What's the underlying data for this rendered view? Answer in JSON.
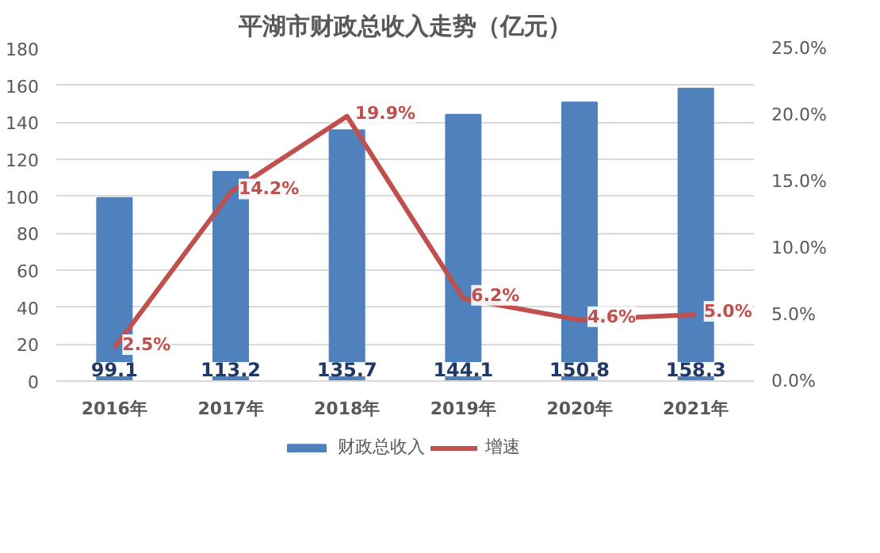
{
  "chart_data": {
    "type": "bar",
    "title": "平湖市财政总收入走势（亿元）",
    "categories": [
      "2016年",
      "2017年",
      "2018年",
      "2019年",
      "2020年",
      "2021年"
    ],
    "series": [
      {
        "name": "财政总收入",
        "color": "#4f81bd",
        "values": [
          99.1,
          113.2,
          135.7,
          144.1,
          150.8,
          158.3
        ],
        "value_labels": [
          "99.1",
          "113.2",
          "135.7",
          "144.1",
          "150.8",
          "158.3"
        ]
      },
      {
        "name": "增速",
        "type": "line",
        "axis": "y2",
        "color": "#c0504d",
        "values": [
          2.5,
          14.2,
          19.9,
          6.2,
          4.6,
          5.0
        ],
        "value_labels": [
          "2.5%",
          "14.2%",
          "19.9%",
          "6.2%",
          "4.6%",
          "5.0%"
        ]
      }
    ],
    "ylim": [
      0,
      180
    ],
    "yticks": [
      0,
      20,
      40,
      60,
      80,
      100,
      120,
      140,
      160,
      180
    ],
    "y2lim": [
      0,
      25
    ],
    "y2ticks": [
      {
        "value": 0,
        "label": "0.0%"
      },
      {
        "value": 5,
        "label": "5.0%"
      },
      {
        "value": 10,
        "label": "10.0%"
      },
      {
        "value": 15,
        "label": "15.0%"
      },
      {
        "value": 20,
        "label": "20.0%"
      },
      {
        "value": 25,
        "label": "25.0%"
      }
    ],
    "grid": "y",
    "legend": "bottom",
    "marker": "none",
    "line_style": "solid"
  }
}
